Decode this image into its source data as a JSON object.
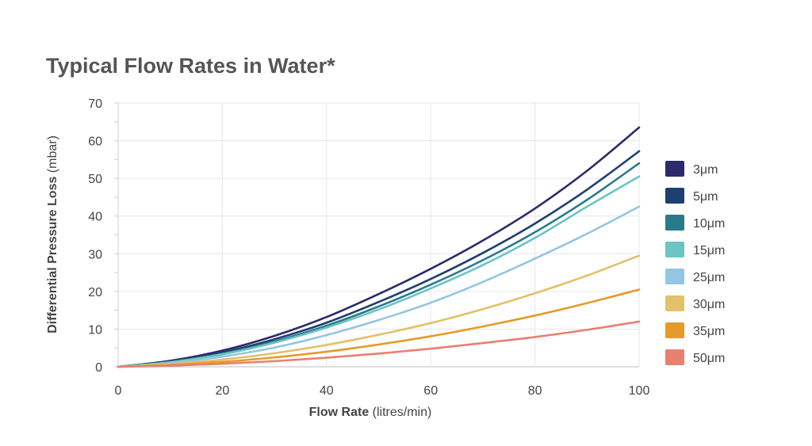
{
  "chart_data": {
    "type": "line",
    "title": "Typical Flow Rates in Water*",
    "xlabel": {
      "main": "Flow Rate",
      "unit": "(litres/min)"
    },
    "ylabel": {
      "main": "Differential Pressure Loss",
      "unit": "(mbar)"
    },
    "xlim": [
      0,
      100
    ],
    "ylim": [
      0,
      70
    ],
    "xticks": [
      0,
      20,
      40,
      60,
      80,
      100
    ],
    "yticks": [
      0,
      10,
      20,
      30,
      40,
      50,
      60,
      70
    ],
    "grid": true,
    "legend_position": "right",
    "x": [
      0,
      10,
      20,
      30,
      40,
      50,
      60,
      70,
      80,
      90,
      100
    ],
    "series": [
      {
        "name": "3μm",
        "color": "#2b2a6b",
        "values": [
          0,
          1.6,
          4.3,
          8.2,
          13.2,
          19.3,
          26.0,
          33.5,
          42.0,
          52.0,
          63.5
        ]
      },
      {
        "name": "5μm",
        "color": "#1f3f6e",
        "values": [
          0,
          1.4,
          3.8,
          7.3,
          11.7,
          17.2,
          23.3,
          30.2,
          38.0,
          47.0,
          57.2
        ]
      },
      {
        "name": "10μm",
        "color": "#2a7a8c",
        "values": [
          0,
          1.3,
          3.5,
          6.7,
          10.9,
          16.0,
          21.8,
          28.3,
          35.7,
          44.3,
          54.0
        ]
      },
      {
        "name": "15μm",
        "color": "#6cc4c4",
        "values": [
          0,
          1.2,
          3.3,
          6.4,
          10.4,
          15.2,
          20.8,
          27.0,
          34.2,
          42.5,
          50.5
        ]
      },
      {
        "name": "25μm",
        "color": "#92c6e3",
        "values": [
          0,
          1.0,
          2.7,
          5.1,
          8.4,
          12.4,
          17.0,
          22.5,
          28.7,
          35.3,
          42.5
        ]
      },
      {
        "name": "30μm",
        "color": "#e3c06a",
        "values": [
          0,
          0.7,
          1.9,
          3.6,
          5.8,
          8.5,
          11.6,
          15.3,
          19.5,
          24.2,
          29.5
        ]
      },
      {
        "name": "35μm",
        "color": "#e59a2a",
        "values": [
          0,
          0.5,
          1.3,
          2.5,
          4.0,
          5.9,
          8.1,
          10.7,
          13.6,
          16.9,
          20.5
        ]
      },
      {
        "name": "50μm",
        "color": "#e88070",
        "values": [
          0,
          0.3,
          0.8,
          1.5,
          2.4,
          3.5,
          4.8,
          6.3,
          7.9,
          9.8,
          12.0
        ]
      }
    ]
  }
}
